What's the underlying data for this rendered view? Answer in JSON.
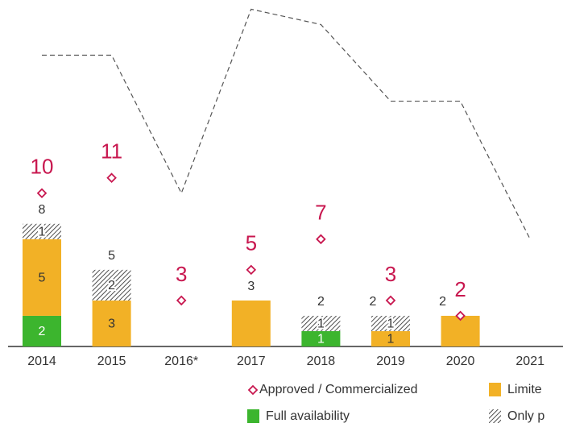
{
  "chart_data": {
    "type": "bar",
    "categories": [
      "2014",
      "2015",
      "2016*",
      "2017",
      "2018",
      "2019",
      "2020",
      "2021"
    ],
    "series": [
      {
        "name": "Full availability",
        "color": "#3cb52e",
        "values": [
          2,
          null,
          null,
          null,
          1,
          null,
          null,
          null
        ]
      },
      {
        "name": "Limite",
        "color": "#f2b126",
        "values": [
          5,
          3,
          null,
          3,
          null,
          1,
          2,
          null
        ]
      },
      {
        "name": "Only p",
        "color": "hatch",
        "values": [
          1,
          2,
          null,
          null,
          1,
          1,
          null,
          null
        ]
      }
    ],
    "totals": [
      8,
      5,
      null,
      3,
      2,
      2,
      2,
      null
    ],
    "approved": {
      "name": "Approved / Commercialized",
      "color": "#c8174f",
      "values": [
        10,
        11,
        3,
        5,
        7,
        3,
        2,
        null
      ]
    },
    "line": {
      "color": "#555",
      "values": [
        19,
        19,
        10,
        22,
        21,
        16,
        16,
        7
      ]
    },
    "ylim": [
      0,
      22.6
    ]
  }
}
